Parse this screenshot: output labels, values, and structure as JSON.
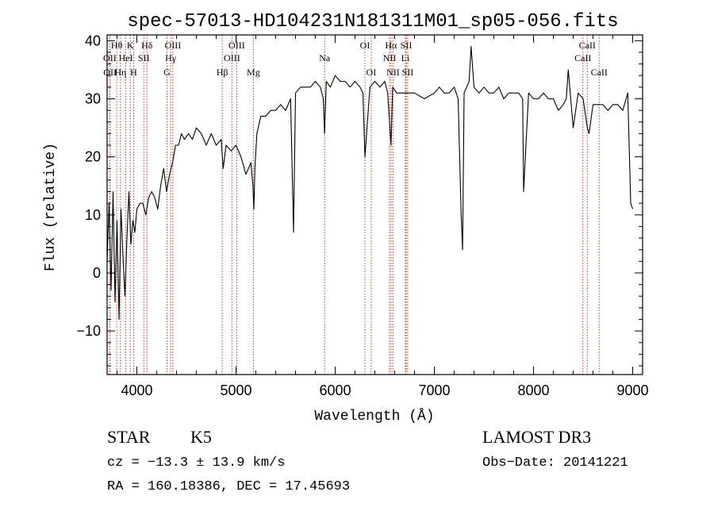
{
  "chart_data": {
    "type": "line",
    "title": "spec-57013-HD104231N181311M01_sp05-056.fits",
    "xlabel": "Wavelength (Å)",
    "ylabel": "Flux (relative)",
    "xlim": [
      3700,
      9100
    ],
    "ylim": [
      -17.5,
      41
    ],
    "xticks": [
      4000,
      5000,
      6000,
      7000,
      8000,
      9000
    ],
    "yticks": [
      -10,
      0,
      10,
      20,
      30,
      40
    ],
    "series": [
      {
        "name": "flux",
        "x": [
          3700,
          3720,
          3740,
          3760,
          3780,
          3800,
          3820,
          3840,
          3860,
          3880,
          3900,
          3920,
          3940,
          3960,
          3980,
          4000,
          4030,
          4060,
          4090,
          4120,
          4150,
          4180,
          4210,
          4240,
          4270,
          4300,
          4330,
          4360,
          4390,
          4420,
          4450,
          4480,
          4520,
          4560,
          4600,
          4650,
          4700,
          4750,
          4800,
          4850,
          4870,
          4900,
          4950,
          5000,
          5050,
          5100,
          5150,
          5170,
          5180,
          5190,
          5210,
          5250,
          5300,
          5350,
          5400,
          5450,
          5500,
          5550,
          5580,
          5600,
          5650,
          5700,
          5750,
          5800,
          5850,
          5880,
          5893,
          5910,
          5950,
          6000,
          6050,
          6100,
          6150,
          6200,
          6250,
          6280,
          6300,
          6350,
          6400,
          6450,
          6500,
          6530,
          6563,
          6580,
          6620,
          6700,
          6800,
          6900,
          7000,
          7050,
          7100,
          7150,
          7200,
          7240,
          7270,
          7285,
          7300,
          7350,
          7370,
          7400,
          7450,
          7500,
          7550,
          7600,
          7650,
          7700,
          7750,
          7800,
          7850,
          7890,
          7900,
          7950,
          8000,
          8050,
          8100,
          8150,
          8200,
          8250,
          8300,
          8330,
          8350,
          8400,
          8450,
          8500,
          8542,
          8560,
          8600,
          8662,
          8700,
          8750,
          8800,
          8850,
          8900,
          8950,
          8980,
          9000
        ],
        "values": [
          2,
          12,
          -3,
          14,
          -5,
          9,
          -8,
          11,
          3,
          -4,
          6,
          14,
          5,
          9,
          7,
          11,
          12,
          12,
          10,
          13,
          14,
          13,
          11,
          15,
          18,
          14,
          17,
          19,
          22,
          22,
          24,
          23,
          24,
          23,
          25,
          24,
          22,
          24,
          22,
          23,
          18,
          22,
          21,
          22,
          20,
          17,
          19,
          15,
          11,
          18,
          24,
          27,
          27,
          28,
          28,
          29,
          28,
          30,
          7,
          31,
          32,
          32,
          32,
          33,
          32,
          30,
          24,
          33,
          32,
          34,
          33,
          33,
          32,
          33,
          32,
          31,
          20,
          32,
          33,
          32,
          33,
          31,
          22,
          32,
          31,
          31,
          31,
          30,
          31,
          32,
          31,
          31,
          32,
          30,
          10,
          4,
          31,
          33,
          39,
          32,
          31,
          32,
          31,
          31,
          32,
          30,
          31,
          31,
          31,
          30,
          14,
          31,
          30,
          30,
          31,
          30,
          30,
          28,
          29,
          30,
          35,
          25,
          31,
          30,
          25,
          24,
          29,
          29,
          29,
          28,
          29,
          29,
          28,
          31,
          12,
          11
        ]
      }
    ],
    "spectral_lines": [
      {
        "label": "Hθ",
        "x": 3797,
        "row": 1
      },
      {
        "label": "OII",
        "x": 3727,
        "row": 2
      },
      {
        "label": "OII",
        "x": 3729,
        "row": 3
      },
      {
        "label": "K",
        "x": 3934,
        "row": 1
      },
      {
        "label": "HeI",
        "x": 3889,
        "row": 2
      },
      {
        "label": "Hη",
        "x": 3835,
        "row": 3
      },
      {
        "label": "Hδ",
        "x": 4102,
        "row": 1
      },
      {
        "label": "SII",
        "x": 4070,
        "row": 2
      },
      {
        "label": "H",
        "x": 3968,
        "row": 3
      },
      {
        "label": "OIII",
        "x": 4363,
        "row": 1
      },
      {
        "label": "Hγ",
        "x": 4341,
        "row": 2
      },
      {
        "label": "G",
        "x": 4304,
        "row": 3
      },
      {
        "label": "OIII",
        "x": 5007,
        "row": 1
      },
      {
        "label": "OIII",
        "x": 4959,
        "row": 2
      },
      {
        "label": "Hβ",
        "x": 4861,
        "row": 3
      },
      {
        "label": "Mg",
        "x": 5175,
        "row": 3
      },
      {
        "label": "Na",
        "x": 5894,
        "row": 2
      },
      {
        "label": "OI",
        "x": 6300,
        "row": 1
      },
      {
        "label": "OI",
        "x": 6363,
        "row": 3
      },
      {
        "label": "Hα",
        "x": 6563,
        "row": 1
      },
      {
        "label": "SII",
        "x": 6716,
        "row": 1
      },
      {
        "label": "NII",
        "x": 6548,
        "row": 2
      },
      {
        "label": "Li",
        "x": 6708,
        "row": 2
      },
      {
        "label": "NII",
        "x": 6583,
        "row": 3
      },
      {
        "label": "SII",
        "x": 6731,
        "row": 3
      },
      {
        "label": "CaII",
        "x": 8542,
        "row": 1
      },
      {
        "label": "CaII",
        "x": 8498,
        "row": 2
      },
      {
        "label": "CaII",
        "x": 8662,
        "row": 3
      }
    ]
  },
  "info": {
    "object_class": "STAR",
    "subclass": "K5",
    "survey": "LAMOST DR3",
    "redshift": "cz = −13.3 ± 13.9 km/s",
    "obs_date": "Obs−Date: 20141221",
    "coords": "RA = 160.18386, DEC =  17.45693"
  }
}
